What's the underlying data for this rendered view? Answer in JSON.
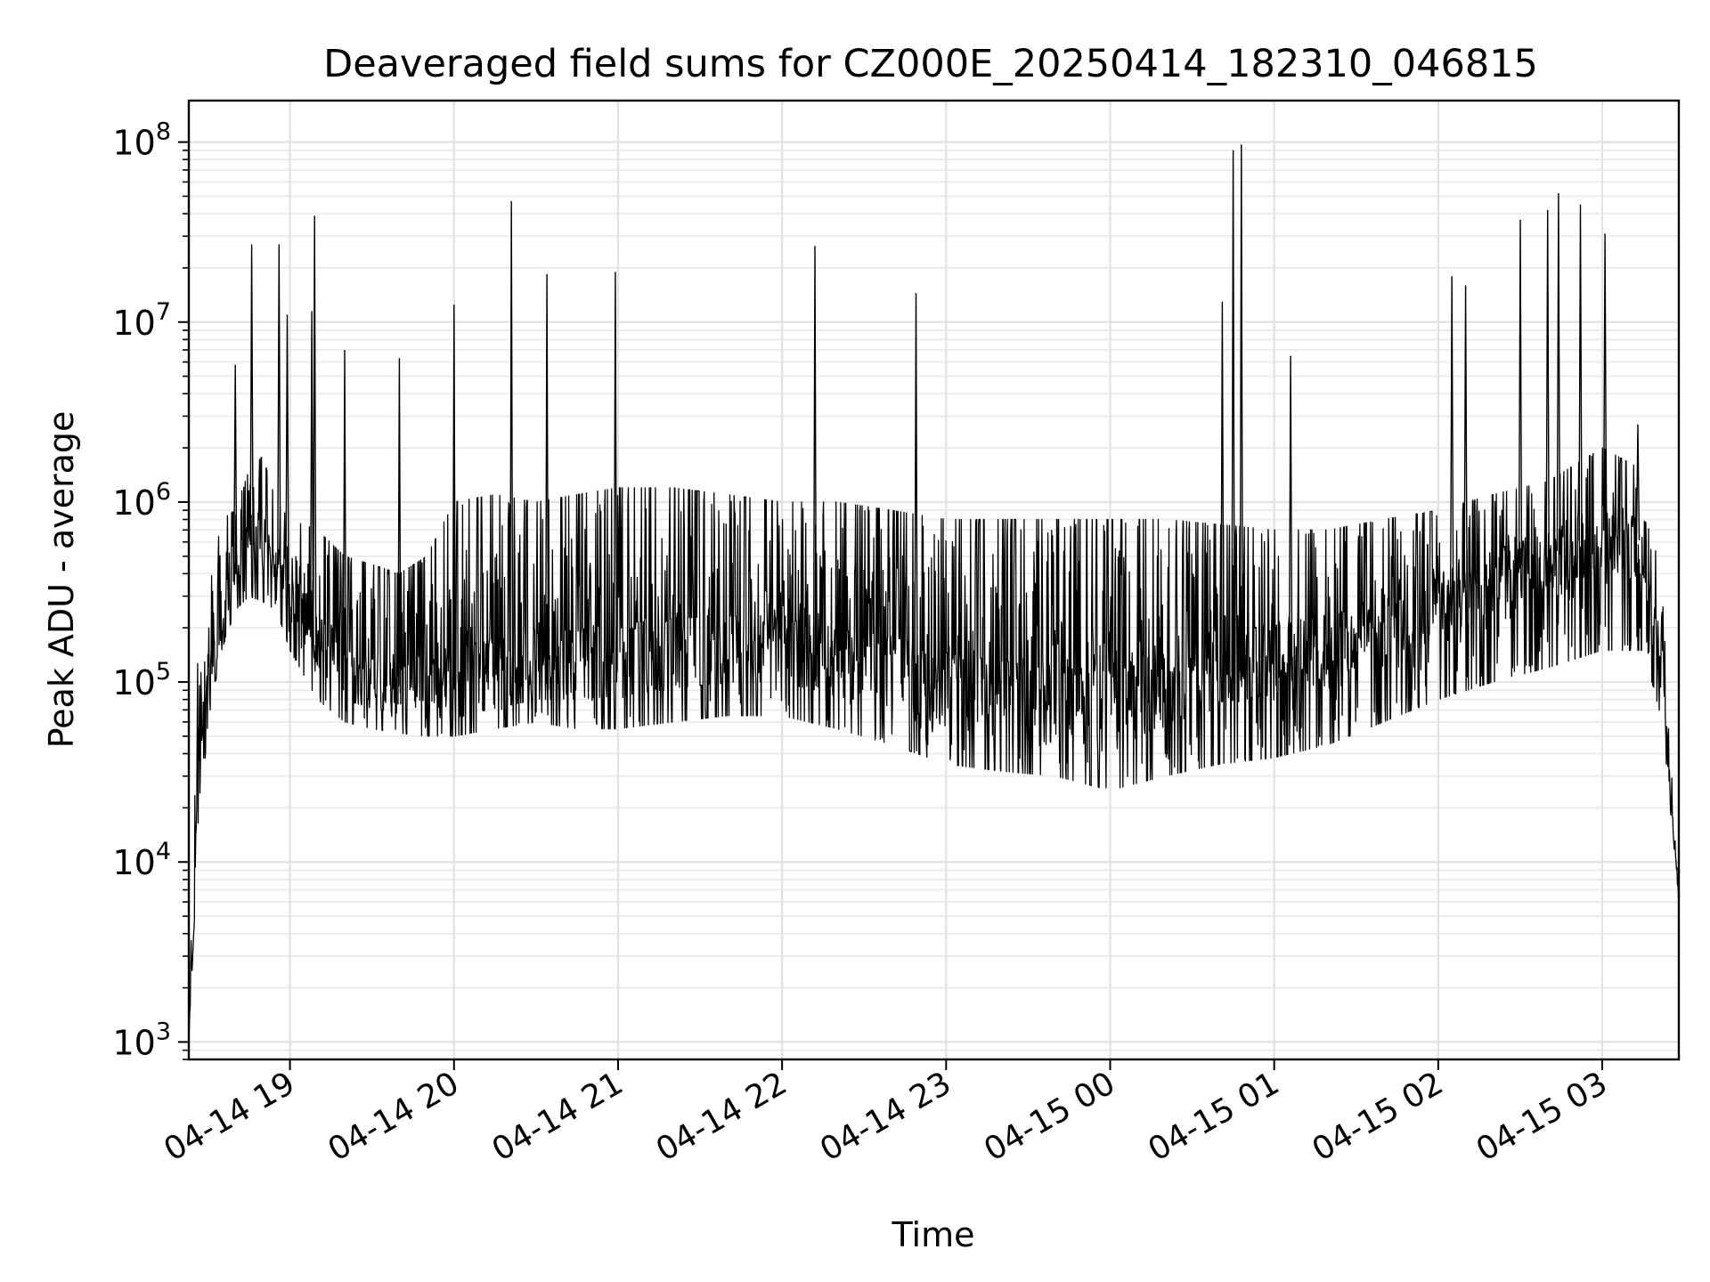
{
  "chart_data": {
    "type": "line",
    "title": "Deaveraged field sums for CZ000E_20250414_182310_046815",
    "xlabel": "Time",
    "ylabel": "Peak ADU - average",
    "yscale": "log",
    "ylim": [
      800,
      170000000
    ],
    "xlim": [
      "2025-04-14 18:23",
      "2025-04-15 03:28"
    ],
    "grid": "major and minor, light gray",
    "legend": "none",
    "line_color": "#000000",
    "x_ticks": [
      {
        "value": "2025-04-14 19:00",
        "label": "04-14 19"
      },
      {
        "value": "2025-04-14 20:00",
        "label": "04-14 20"
      },
      {
        "value": "2025-04-14 21:00",
        "label": "04-14 21"
      },
      {
        "value": "2025-04-14 22:00",
        "label": "04-14 22"
      },
      {
        "value": "2025-04-14 23:00",
        "label": "04-14 23"
      },
      {
        "value": "2025-04-15 00:00",
        "label": "04-15 00"
      },
      {
        "value": "2025-04-15 01:00",
        "label": "04-15 01"
      },
      {
        "value": "2025-04-15 02:00",
        "label": "04-15 02"
      },
      {
        "value": "2025-04-15 03:00",
        "label": "04-15 03"
      }
    ],
    "y_ticks": [
      {
        "value": 1000,
        "base": "10",
        "exp": "3"
      },
      {
        "value": 10000,
        "base": "10",
        "exp": "4"
      },
      {
        "value": 100000,
        "base": "10",
        "exp": "5"
      },
      {
        "value": 1000000,
        "base": "10",
        "exp": "6"
      },
      {
        "value": 10000000,
        "base": "10",
        "exp": "7"
      },
      {
        "value": 100000000,
        "base": "10",
        "exp": "8"
      }
    ],
    "series": [
      {
        "x": [
          "2025-04-14 18:23",
          "2025-04-14 18:26",
          "2025-04-14 18:30",
          "2025-04-14 18:35",
          "2025-04-14 18:40",
          "2025-04-14 18:45",
          "2025-04-14 18:50",
          "2025-04-14 18:55",
          "2025-04-14 19:00",
          "2025-04-14 19:10",
          "2025-04-14 19:20",
          "2025-04-14 19:30",
          "2025-04-14 19:40",
          "2025-04-14 19:50",
          "2025-04-14 20:00",
          "2025-04-14 20:15",
          "2025-04-14 20:30",
          "2025-04-14 20:45",
          "2025-04-14 21:00",
          "2025-04-14 21:20",
          "2025-04-14 21:40",
          "2025-04-14 22:00",
          "2025-04-14 22:20",
          "2025-04-14 22:40",
          "2025-04-14 23:00",
          "2025-04-14 23:20",
          "2025-04-14 23:40",
          "2025-04-15 00:00",
          "2025-04-15 00:20",
          "2025-04-15 00:40",
          "2025-04-15 01:00",
          "2025-04-15 01:20",
          "2025-04-15 01:40",
          "2025-04-15 02:00",
          "2025-04-15 02:20",
          "2025-04-15 02:40",
          "2025-04-15 03:00",
          "2025-04-15 03:15",
          "2025-04-15 03:22",
          "2025-04-15 03:28"
        ],
        "y": [
          1000,
          15000,
          80000,
          200000,
          400000,
          600000,
          500000,
          450000,
          350000,
          150000,
          90000,
          80000,
          75000,
          70000,
          70000,
          80000,
          90000,
          95000,
          100000,
          110000,
          120000,
          120000,
          100000,
          90000,
          70000,
          60000,
          55000,
          50000,
          80000,
          110000,
          120000,
          150000,
          200000,
          280000,
          400000,
          500000,
          700000,
          600000,
          80000,
          6000
        ],
        "bottom": [
          1000,
          10000,
          60000,
          150000,
          250000,
          300000,
          280000,
          250000,
          150000,
          80000,
          60000,
          55000,
          52000,
          50000,
          50000,
          55000,
          60000,
          55000,
          55000,
          60000,
          65000,
          65000,
          55000,
          45000,
          35000,
          32000,
          30000,
          25000,
          30000,
          35000,
          38000,
          45000,
          60000,
          80000,
          100000,
          120000,
          150000,
          150000,
          60000,
          6000
        ],
        "top": [
          1000,
          120000,
          300000,
          800000,
          900000,
          1500000,
          1800000,
          1000000,
          800000,
          700000,
          500000,
          450000,
          400000,
          500000,
          1000000,
          1100000,
          1000000,
          1100000,
          1200000,
          1200000,
          1100000,
          1000000,
          1000000,
          900000,
          800000,
          800000,
          800000,
          800000,
          800000,
          750000,
          700000,
          700000,
          800000,
          900000,
          1100000,
          1300000,
          2000000,
          1500000,
          300000,
          6000
        ]
      }
    ],
    "spikes": [
      {
        "x": "2025-04-14 18:40",
        "y": 5800000
      },
      {
        "x": "2025-04-14 18:46",
        "y": 27000000
      },
      {
        "x": "2025-04-14 18:56",
        "y": 27000000
      },
      {
        "x": "2025-04-14 18:59",
        "y": 11000000
      },
      {
        "x": "2025-04-14 19:08",
        "y": 11500000
      },
      {
        "x": "2025-04-14 19:09",
        "y": 39000000
      },
      {
        "x": "2025-04-14 19:20",
        "y": 7000000
      },
      {
        "x": "2025-04-14 19:40",
        "y": 6300000
      },
      {
        "x": "2025-04-14 20:00",
        "y": 12500000
      },
      {
        "x": "2025-04-14 20:21",
        "y": 47000000
      },
      {
        "x": "2025-04-14 20:34",
        "y": 18500000
      },
      {
        "x": "2025-04-14 20:59",
        "y": 19000000
      },
      {
        "x": "2025-04-14 22:12",
        "y": 26500000
      },
      {
        "x": "2025-04-14 22:49",
        "y": 14500000
      },
      {
        "x": "2025-04-15 00:41",
        "y": 13000000
      },
      {
        "x": "2025-04-15 00:45",
        "y": 90000000
      },
      {
        "x": "2025-04-15 00:48",
        "y": 97000000
      },
      {
        "x": "2025-04-15 01:06",
        "y": 6500000
      },
      {
        "x": "2025-04-15 02:05",
        "y": 18000000
      },
      {
        "x": "2025-04-15 02:10",
        "y": 16000000
      },
      {
        "x": "2025-04-15 02:30",
        "y": 37000000
      },
      {
        "x": "2025-04-15 02:40",
        "y": 42000000
      },
      {
        "x": "2025-04-15 02:44",
        "y": 52000000
      },
      {
        "x": "2025-04-15 02:52",
        "y": 45000000
      },
      {
        "x": "2025-04-15 03:01",
        "y": 31000000
      },
      {
        "x": "2025-04-15 03:13",
        "y": 2700000
      }
    ]
  }
}
